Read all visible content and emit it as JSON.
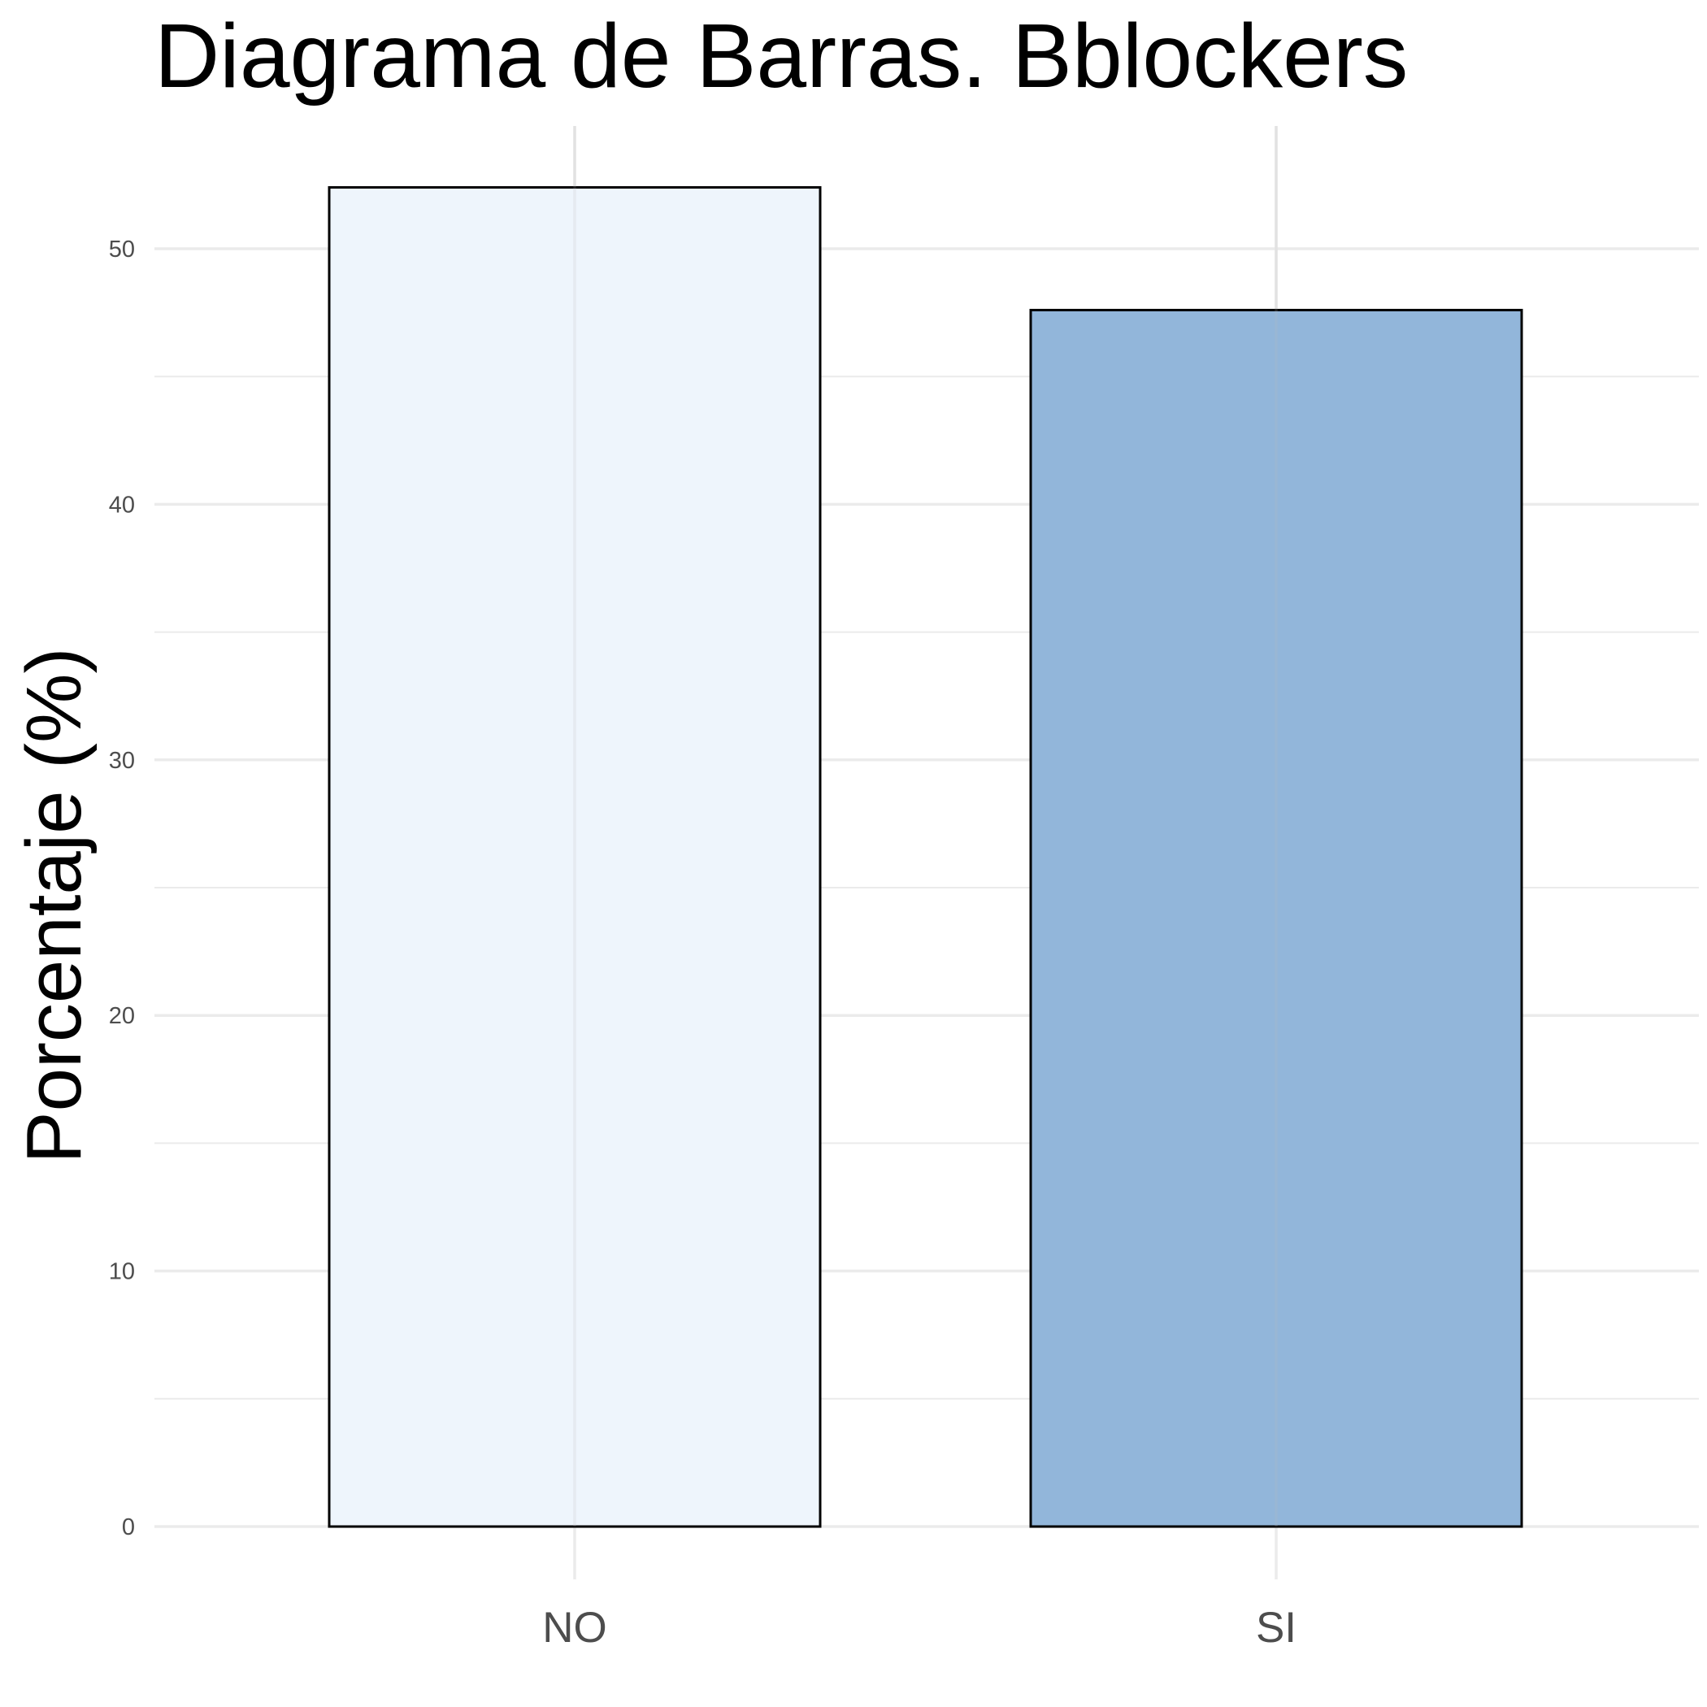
{
  "chart_data": {
    "type": "bar",
    "title": "Diagrama de Barras. Bblockers",
    "xlabel": "",
    "ylabel": "Porcentaje (%)",
    "categories": [
      "NO",
      "SI"
    ],
    "values": [
      52.4,
      47.6
    ],
    "ylim": [
      0,
      53.7
    ],
    "yticks": [
      0,
      10,
      20,
      30,
      40,
      50
    ],
    "grid": true,
    "bar_colors": [
      "#eef5fc",
      "#92b6da"
    ],
    "bar_outline": "#000000",
    "gridline_color": "#ebebeb"
  }
}
